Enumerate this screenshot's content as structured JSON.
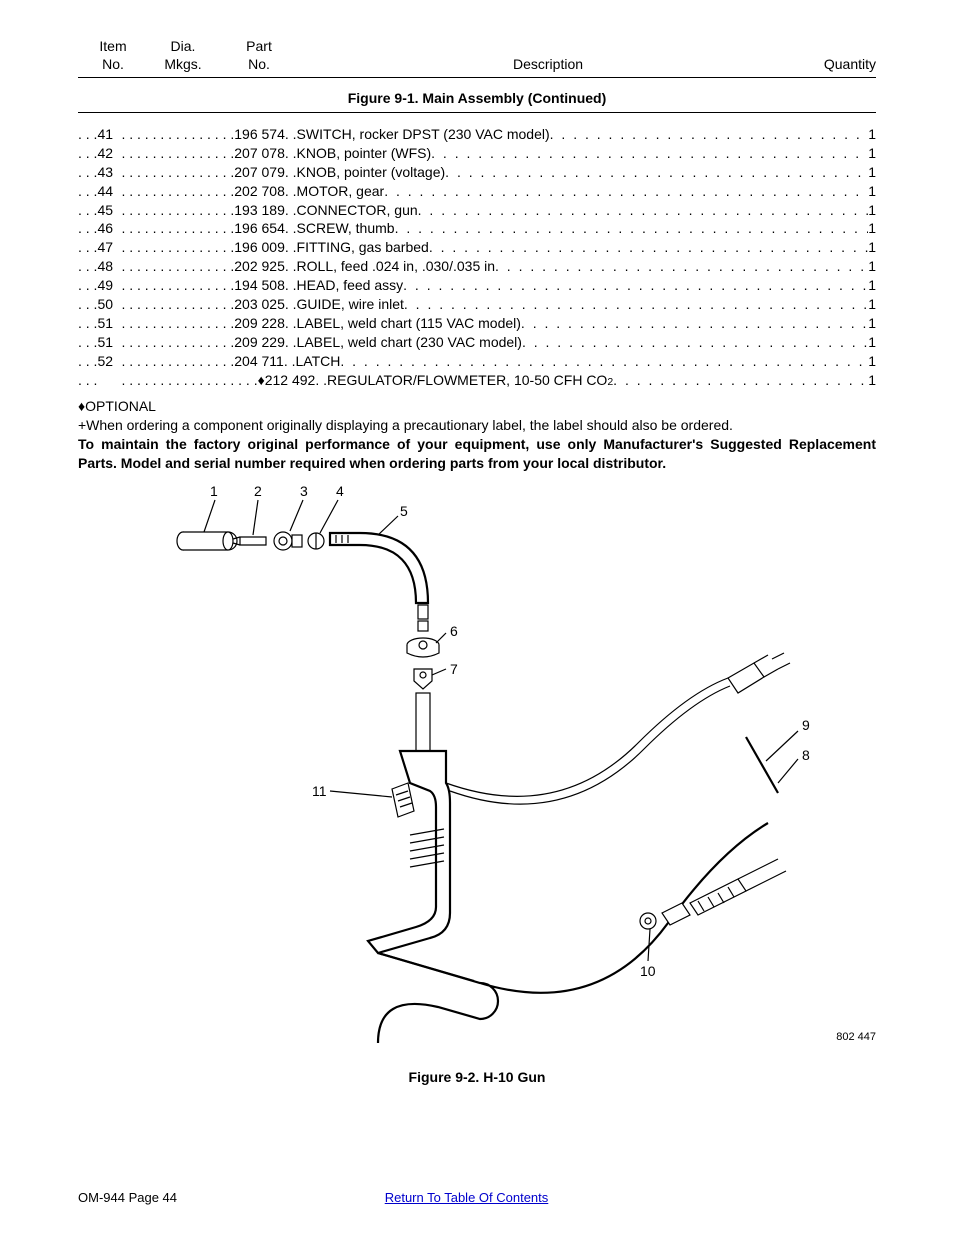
{
  "header": {
    "col_item_l1": "Item",
    "col_item_l2": "No.",
    "col_dia_l1": "Dia.",
    "col_dia_l2": "Mkgs.",
    "col_part_l1": "Part",
    "col_part_l2": "No.",
    "col_desc": "Description",
    "col_qty": "Quantity"
  },
  "figure1_title": "Figure 9-1. Main Assembly (Continued)",
  "parts": [
    {
      "item": "41",
      "part": "196 574",
      "desc": "SWITCH, rocker DPST (230 VAC model)",
      "qty": "1"
    },
    {
      "item": "42",
      "part": "207 078",
      "desc": "KNOB, pointer (WFS)",
      "qty": "1"
    },
    {
      "item": "43",
      "part": "207 079",
      "desc": "KNOB, pointer (voltage)",
      "qty": "1"
    },
    {
      "item": "44",
      "part": "202 708",
      "desc": "MOTOR, gear",
      "qty": "1"
    },
    {
      "item": "45",
      "part": "193 189",
      "desc": "CONNECTOR, gun",
      "qty": "1"
    },
    {
      "item": "46",
      "part": "196 654",
      "desc": "SCREW, thumb",
      "qty": "1"
    },
    {
      "item": "47",
      "part": "196 009",
      "desc": "FITTING, gas barbed",
      "qty": "1"
    },
    {
      "item": "48",
      "part": "202 925",
      "desc": "ROLL, feed .024 in, .030/.035 in",
      "qty": "1"
    },
    {
      "item": "49",
      "part": "194 508",
      "desc": "HEAD, feed assy",
      "qty": "1"
    },
    {
      "item": "50",
      "part": "203 025",
      "desc": "GUIDE, wire inlet",
      "qty": "1"
    },
    {
      "item": "51",
      "part": "209 228",
      "desc": "LABEL, weld chart (115 VAC model)",
      "qty": "1"
    },
    {
      "item": "51",
      "part": "209 229",
      "desc": "LABEL, weld chart (230 VAC model)",
      "qty": "1"
    },
    {
      "item": "52",
      "part": "204 711",
      "desc": "LATCH",
      "qty": "1"
    },
    {
      "item": "",
      "part": "♦212 492",
      "desc": "REGULATOR/FLOWMETER, 10-50 CFH CO",
      "desc_sub": "2",
      "qty": "1"
    }
  ],
  "notes": {
    "optional": "♦OPTIONAL",
    "plus_note": "+When ordering a component originally displaying a precautionary label, the label should also be ordered.",
    "bold_note": "To maintain the factory original performance of your equipment, use only Manufacturer's Suggested Replacement Parts. Model and serial number required when ordering parts from your local distributor."
  },
  "callouts": {
    "c1": "1",
    "c2": "2",
    "c3": "3",
    "c4": "4",
    "c5": "5",
    "c6": "6",
    "c7": "7",
    "c8": "8",
    "c9": "9",
    "c10": "10",
    "c11": "11"
  },
  "drawing_no": "802 447",
  "figure2_title": "Figure 9-2. H-10 Gun",
  "footer": {
    "page": "OM-944 Page 44",
    "toc": "Return To Table Of Contents"
  }
}
